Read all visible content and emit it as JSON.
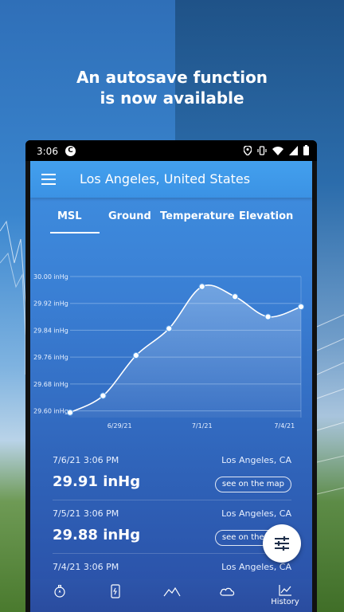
{
  "headline": {
    "line1": "An autosave function",
    "line2": "is now available"
  },
  "status_bar": {
    "time": "3:06",
    "app_icon": "app-notification-icon",
    "icons": [
      "location-icon",
      "vibrate-icon",
      "wifi-icon",
      "signal-icon",
      "battery-icon"
    ]
  },
  "toolbar": {
    "title": "Los Angeles, United States",
    "menu_icon": "hamburger-menu-icon"
  },
  "tabs": [
    {
      "label": "MSL",
      "selected": true
    },
    {
      "label": "Ground",
      "selected": false
    },
    {
      "label": "Temperature",
      "selected": false
    },
    {
      "label": "Elevation",
      "selected": false
    }
  ],
  "chart_data": {
    "type": "line",
    "y_tick_labels": [
      "30.00 inHg",
      "29.92 inHg",
      "29.84 inHg",
      "29.76 inHg",
      "29.68 inHg",
      "29.60 inHg"
    ],
    "ylim": [
      29.58,
      30.0
    ],
    "x_tick_labels": [
      "6/29/21",
      "7/1/21",
      "7/4/21"
    ],
    "x_tick_positions": [
      1.5,
      4.0,
      6.5
    ],
    "points": [
      {
        "x": 0,
        "y": 29.595
      },
      {
        "x": 1,
        "y": 29.645
      },
      {
        "x": 2,
        "y": 29.765
      },
      {
        "x": 3,
        "y": 29.845
      },
      {
        "x": 4,
        "y": 29.97
      },
      {
        "x": 5,
        "y": 29.94
      },
      {
        "x": 6,
        "y": 29.88
      },
      {
        "x": 7,
        "y": 29.91
      }
    ],
    "grid": true,
    "colors": {
      "line": "#ffffff",
      "grid": "#b8d4f5",
      "fill": "#ffffff"
    }
  },
  "history": [
    {
      "date": "7/6/21 3:06 PM",
      "location": "Los Angeles, CA",
      "value": "29.91 inHg",
      "map_label": "see on the map"
    },
    {
      "date": "7/5/21 3:06 PM",
      "location": "Los Angeles, CA",
      "value": "29.88 inHg",
      "map_label": "see on the map"
    },
    {
      "date": "7/4/21 3:06 PM",
      "location": "Los Angeles, CA",
      "value": "",
      "map_label": ""
    }
  ],
  "fab": {
    "icon": "filter-sliders-icon"
  },
  "bottom_nav": [
    {
      "icon": "compass-icon",
      "label": ""
    },
    {
      "icon": "phone-sensor-icon",
      "label": ""
    },
    {
      "icon": "mountain-icon",
      "label": ""
    },
    {
      "icon": "cloud-icon",
      "label": ""
    },
    {
      "icon": "history-chart-icon",
      "label": "History"
    }
  ]
}
